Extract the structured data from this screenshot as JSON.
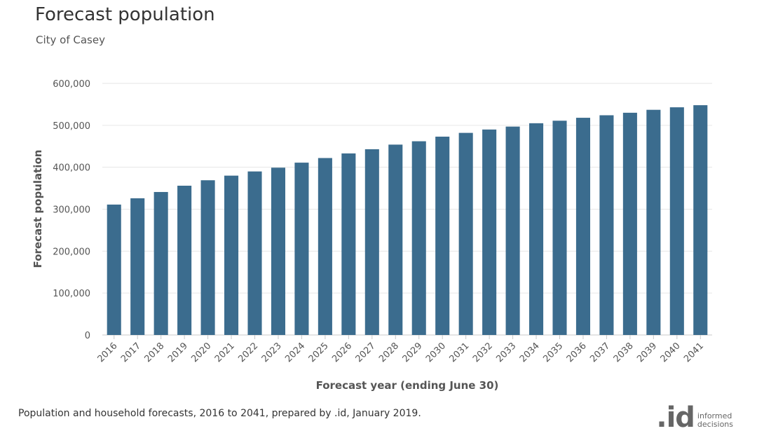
{
  "title": "Forecast population",
  "subtitle": "City of Casey",
  "source": "Population and household forecasts, 2016 to 2041, prepared by .id, January 2019.",
  "logo": {
    "mark": ".id",
    "line1": "informed",
    "line2": "decisions"
  },
  "colors": {
    "bar": "#3b6c8e",
    "grid": "#e6e6e6",
    "axis": "#c8c8c8"
  },
  "chart_data": {
    "type": "bar",
    "xlabel": "Forecast year (ending June 30)",
    "ylabel": "Forecast population",
    "ylim": [
      0,
      600000
    ],
    "yticks": [
      0,
      100000,
      200000,
      300000,
      400000,
      500000,
      600000
    ],
    "ytick_labels": [
      "0",
      "100,000",
      "200,000",
      "300,000",
      "400,000",
      "500,000",
      "600,000"
    ],
    "grid": true,
    "categories": [
      "2016",
      "2017",
      "2018",
      "2019",
      "2020",
      "2021",
      "2022",
      "2023",
      "2024",
      "2025",
      "2026",
      "2027",
      "2028",
      "2029",
      "2030",
      "2031",
      "2032",
      "2033",
      "2034",
      "2035",
      "2036",
      "2037",
      "2038",
      "2039",
      "2040",
      "2041"
    ],
    "values": [
      311000,
      326000,
      341000,
      356000,
      369000,
      380000,
      390000,
      399000,
      411000,
      422000,
      433000,
      443000,
      454000,
      462000,
      473000,
      482000,
      490000,
      497000,
      505000,
      511000,
      518000,
      524000,
      530000,
      537000,
      543000,
      548000
    ]
  }
}
